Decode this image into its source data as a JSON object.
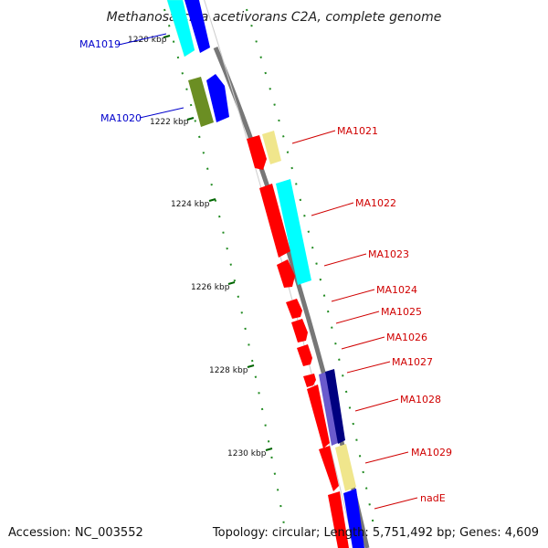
{
  "title": "Methanosarcina acetivorans C2A, complete genome",
  "footer": {
    "accession": "Accession: NC_003552",
    "topology": "Topology: circular; Length: 5,751,492 bp; Genes: 4,609"
  },
  "scale_labels": [
    "1220 kbp",
    "1222 kbp",
    "1224 kbp",
    "1226 kbp",
    "1228 kbp",
    "1230 kbp"
  ],
  "genes_left": [
    "MA1019",
    "MA1020"
  ],
  "genes_right": [
    "MA1021",
    "MA1022",
    "MA1023",
    "MA1024",
    "MA1025",
    "MA1026",
    "MA1027",
    "MA1028",
    "MA1029",
    "nadE"
  ],
  "colors": {
    "backbone": "#888888",
    "red": "#ff0000",
    "cyan": "#00ffff",
    "blue": "#0000ff",
    "olive": "#6b8e23",
    "khaki": "#f0e68c",
    "navy": "#000080",
    "slate": "#6a5acd",
    "tick_green": "#006400",
    "label_red": "#d00000",
    "label_blue": "#0000cc"
  }
}
